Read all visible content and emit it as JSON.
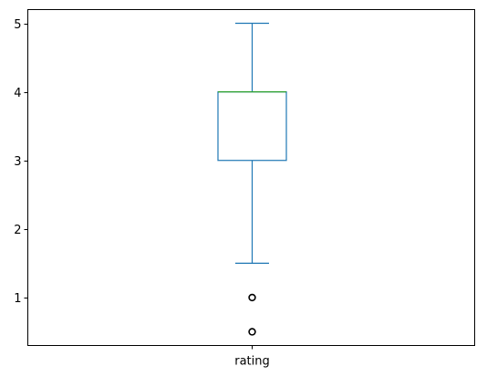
{
  "chart_data": {
    "type": "box",
    "title": "",
    "xlabel": "",
    "ylabel": "",
    "categories": [
      "rating"
    ],
    "boxes": [
      {
        "name": "rating",
        "whisker_low": 1.5,
        "q1": 3,
        "median": 4,
        "q3": 4,
        "whisker_high": 5,
        "outliers": [
          1.0,
          0.5
        ]
      }
    ],
    "ylim": [
      0.3,
      5.2
    ],
    "yticks": [
      1,
      2,
      3,
      4,
      5
    ],
    "ytick_labels": [
      "1",
      "2",
      "3",
      "4",
      "5"
    ],
    "colors": {
      "box": "#1f77b4",
      "median": "#2ca02c",
      "outlier": "#000000",
      "axes": "#000000"
    }
  }
}
